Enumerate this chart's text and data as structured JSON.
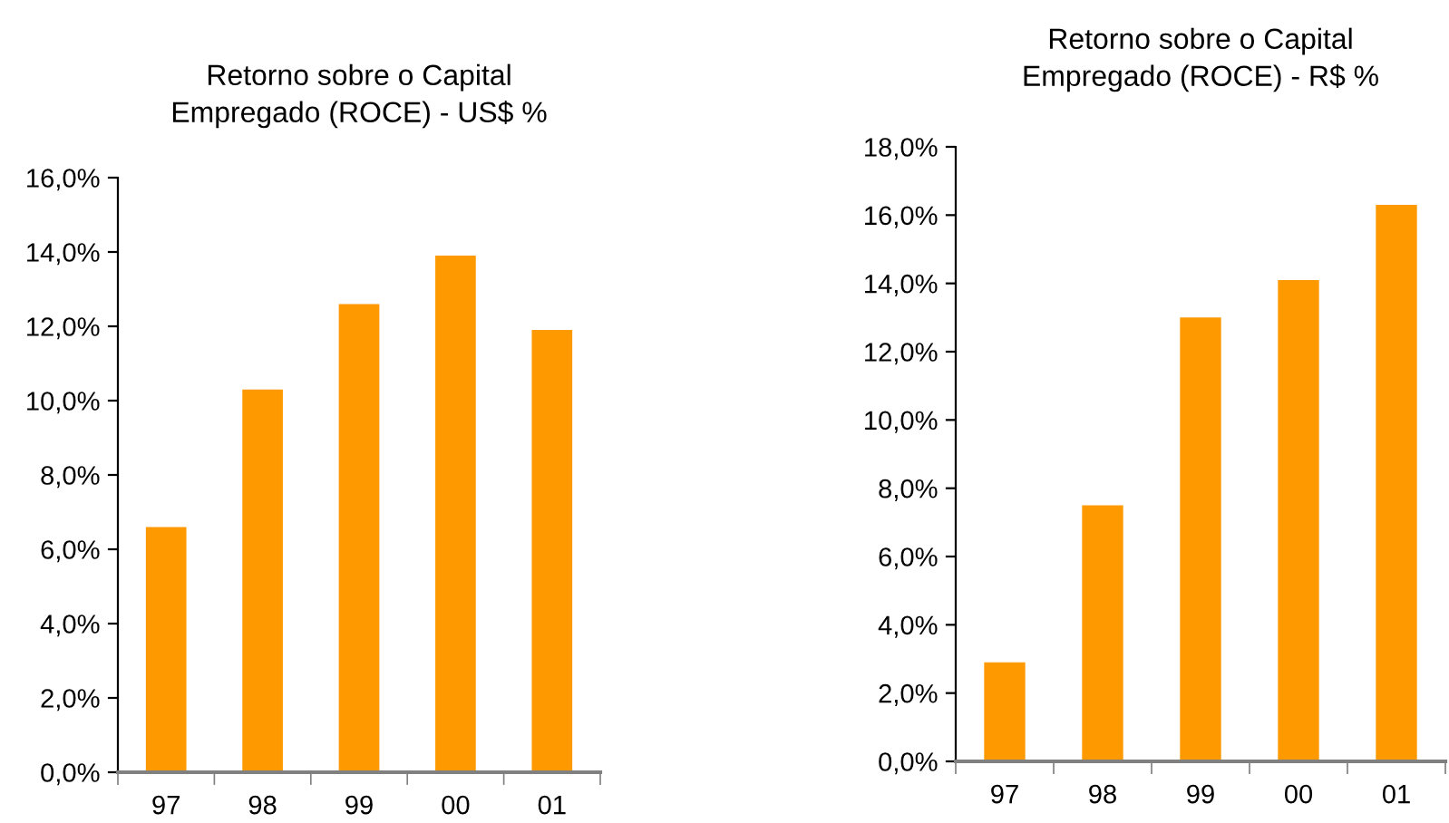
{
  "chart_data": [
    {
      "type": "bar",
      "title": "Retorno sobre o Capital\nEmpregado (ROCE) - US$ %",
      "categories": [
        "97",
        "98",
        "99",
        "00",
        "01"
      ],
      "values": [
        6.6,
        10.3,
        12.6,
        13.9,
        11.9
      ],
      "color": "#ff9900",
      "ylim": [
        0,
        16
      ],
      "yticks": [
        {
          "value": 0,
          "label": "0,0%"
        },
        {
          "value": 2,
          "label": "2,0%"
        },
        {
          "value": 4,
          "label": "4,0%"
        },
        {
          "value": 6,
          "label": "6,0%"
        },
        {
          "value": 8,
          "label": "8,0%"
        },
        {
          "value": 10,
          "label": "10,0%"
        },
        {
          "value": 12,
          "label": "12,0%"
        },
        {
          "value": 14,
          "label": "14,0%"
        },
        {
          "value": 16,
          "label": "16,0%"
        }
      ]
    },
    {
      "type": "bar",
      "title": "Retorno sobre o Capital\nEmpregado (ROCE) - R$ %",
      "categories": [
        "97",
        "98",
        "99",
        "00",
        "01"
      ],
      "values": [
        2.9,
        7.5,
        13.0,
        14.1,
        16.3
      ],
      "color": "#ff9900",
      "ylim": [
        0,
        18
      ],
      "yticks": [
        {
          "value": 0,
          "label": "0,0%"
        },
        {
          "value": 2,
          "label": "2,0%"
        },
        {
          "value": 4,
          "label": "4,0%"
        },
        {
          "value": 6,
          "label": "6,0%"
        },
        {
          "value": 8,
          "label": "8,0%"
        },
        {
          "value": 10,
          "label": "10,0%"
        },
        {
          "value": 12,
          "label": "12,0%"
        },
        {
          "value": 14,
          "label": "14,0%"
        },
        {
          "value": 16,
          "label": "16,0%"
        },
        {
          "value": 18,
          "label": "18,0%"
        }
      ]
    }
  ]
}
